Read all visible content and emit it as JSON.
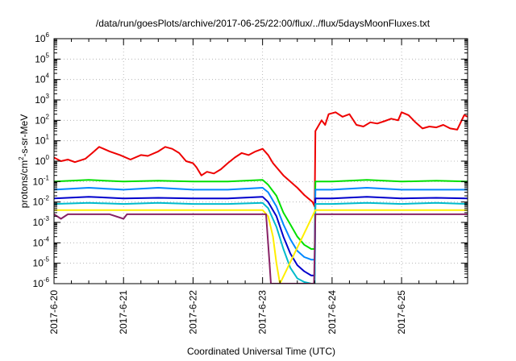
{
  "chart_data": {
    "type": "line",
    "title": "/data/run/goesPlots/archive/2017-06-25/22:00/flux/../flux/5daysMoonFluxes.txt",
    "xlabel": "Coordinated Universal Time (UTC)",
    "ylabel": "protons/cm2-s-sr-MeV",
    "ylabel_parts": [
      "protons/cm",
      "2",
      "-s-sr-MeV"
    ],
    "x_unit": "days since 2017-06-20",
    "xlim": [
      0,
      5.95
    ],
    "ylim": [
      1e-06,
      1000000.0
    ],
    "yscale": "log",
    "grid": true,
    "legend": "none",
    "x_ticks": [
      {
        "value": 0,
        "label": "2017-6-20"
      },
      {
        "value": 1,
        "label": "2017-6-21"
      },
      {
        "value": 2,
        "label": "2017-6-22"
      },
      {
        "value": 3,
        "label": "2017-6-23"
      },
      {
        "value": 4,
        "label": "2017-6-24"
      },
      {
        "value": 5,
        "label": "2017-6-25"
      }
    ],
    "y_ticks": [
      {
        "exp": -6,
        "base": "10",
        "sup": "-6"
      },
      {
        "exp": -5,
        "base": "10",
        "sup": "-5"
      },
      {
        "exp": -4,
        "base": "10",
        "sup": "-4"
      },
      {
        "exp": -3,
        "base": "10",
        "sup": "-3"
      },
      {
        "exp": -2,
        "base": "10",
        "sup": "-2"
      },
      {
        "exp": -1,
        "base": "10",
        "sup": "-1"
      },
      {
        "exp": 0,
        "base": "10",
        "sup": "0"
      },
      {
        "exp": 1,
        "base": "10",
        "sup": "1"
      },
      {
        "exp": 2,
        "base": "10",
        "sup": "2"
      },
      {
        "exp": 3,
        "base": "10",
        "sup": "3"
      },
      {
        "exp": 4,
        "base": "10",
        "sup": "4"
      },
      {
        "exp": 5,
        "base": "10",
        "sup": "5"
      },
      {
        "exp": 6,
        "base": "10",
        "sup": "6"
      }
    ],
    "series": [
      {
        "color": "#ee0000",
        "points": [
          [
            0,
            1.5
          ],
          [
            0.1,
            1.0
          ],
          [
            0.2,
            1.2
          ],
          [
            0.3,
            0.9
          ],
          [
            0.45,
            1.3
          ],
          [
            0.55,
            2.5
          ],
          [
            0.65,
            5.0
          ],
          [
            0.8,
            3.0
          ],
          [
            0.95,
            2.0
          ],
          [
            1.1,
            1.2
          ],
          [
            1.25,
            2.0
          ],
          [
            1.35,
            1.8
          ],
          [
            1.5,
            3.0
          ],
          [
            1.6,
            5.0
          ],
          [
            1.7,
            4.0
          ],
          [
            1.8,
            2.5
          ],
          [
            1.9,
            1.0
          ],
          [
            2.0,
            0.8
          ],
          [
            2.05,
            0.5
          ],
          [
            2.12,
            0.2
          ],
          [
            2.2,
            0.3
          ],
          [
            2.3,
            0.25
          ],
          [
            2.4,
            0.4
          ],
          [
            2.5,
            0.8
          ],
          [
            2.6,
            1.5
          ],
          [
            2.7,
            2.5
          ],
          [
            2.8,
            2.0
          ],
          [
            2.9,
            3.0
          ],
          [
            3.0,
            4.0
          ],
          [
            3.08,
            2.0
          ],
          [
            3.15,
            0.8
          ],
          [
            3.3,
            0.2
          ],
          [
            3.5,
            0.05
          ],
          [
            3.6,
            0.022
          ],
          [
            3.72,
            0.01
          ],
          [
            3.75,
            0.006
          ],
          [
            3.76,
            30
          ],
          [
            3.85,
            100
          ],
          [
            3.9,
            60
          ],
          [
            3.95,
            200
          ],
          [
            4.05,
            250
          ],
          [
            4.15,
            150
          ],
          [
            4.25,
            200
          ],
          [
            4.35,
            60
          ],
          [
            4.45,
            50
          ],
          [
            4.55,
            80
          ],
          [
            4.65,
            70
          ],
          [
            4.75,
            90
          ],
          [
            4.85,
            120
          ],
          [
            4.95,
            100
          ],
          [
            5.0,
            250
          ],
          [
            5.1,
            180
          ],
          [
            5.2,
            80
          ],
          [
            5.3,
            40
          ],
          [
            5.4,
            50
          ],
          [
            5.5,
            45
          ],
          [
            5.6,
            60
          ],
          [
            5.7,
            40
          ],
          [
            5.8,
            35
          ],
          [
            5.9,
            180
          ],
          [
            5.95,
            150
          ]
        ]
      },
      {
        "color": "#00e000",
        "points": [
          [
            0,
            0.1
          ],
          [
            0.5,
            0.12
          ],
          [
            1.0,
            0.1
          ],
          [
            1.5,
            0.11
          ],
          [
            2.0,
            0.1
          ],
          [
            2.5,
            0.1
          ],
          [
            3.0,
            0.12
          ],
          [
            3.08,
            0.07
          ],
          [
            3.2,
            0.02
          ],
          [
            3.3,
            0.003
          ],
          [
            3.4,
            0.0008
          ],
          [
            3.5,
            0.0002
          ],
          [
            3.6,
            8e-05
          ],
          [
            3.7,
            5e-05
          ],
          [
            3.75,
            5e-05
          ],
          [
            3.76,
            0.1
          ],
          [
            4.0,
            0.1
          ],
          [
            4.5,
            0.12
          ],
          [
            5.0,
            0.1
          ],
          [
            5.5,
            0.11
          ],
          [
            5.95,
            0.1
          ]
        ]
      },
      {
        "color": "#0088ff",
        "points": [
          [
            0,
            0.04
          ],
          [
            0.5,
            0.05
          ],
          [
            1.0,
            0.04
          ],
          [
            1.5,
            0.05
          ],
          [
            2.0,
            0.04
          ],
          [
            2.5,
            0.04
          ],
          [
            3.0,
            0.05
          ],
          [
            3.08,
            0.03
          ],
          [
            3.2,
            0.006
          ],
          [
            3.3,
            0.0008
          ],
          [
            3.4,
            0.00015
          ],
          [
            3.5,
            4e-05
          ],
          [
            3.6,
            2e-05
          ],
          [
            3.7,
            1.5e-05
          ],
          [
            3.75,
            1.5e-05
          ],
          [
            3.76,
            0.04
          ],
          [
            4.0,
            0.04
          ],
          [
            4.5,
            0.05
          ],
          [
            5.0,
            0.04
          ],
          [
            5.5,
            0.04
          ],
          [
            5.95,
            0.04
          ]
        ]
      },
      {
        "color": "#0000cc",
        "points": [
          [
            0,
            0.015
          ],
          [
            0.5,
            0.018
          ],
          [
            1.0,
            0.015
          ],
          [
            1.5,
            0.016
          ],
          [
            2.0,
            0.015
          ],
          [
            2.5,
            0.015
          ],
          [
            3.0,
            0.018
          ],
          [
            3.08,
            0.01
          ],
          [
            3.2,
            0.002
          ],
          [
            3.3,
            0.0002
          ],
          [
            3.4,
            3e-05
          ],
          [
            3.5,
            8e-06
          ],
          [
            3.6,
            4e-06
          ],
          [
            3.7,
            2.5e-06
          ],
          [
            3.75,
            2.5e-06
          ],
          [
            3.76,
            0.015
          ],
          [
            4.0,
            0.015
          ],
          [
            4.5,
            0.018
          ],
          [
            5.0,
            0.015
          ],
          [
            5.5,
            0.016
          ],
          [
            5.95,
            0.015
          ]
        ]
      },
      {
        "color": "#00bbcc",
        "points": [
          [
            0,
            0.008
          ],
          [
            0.5,
            0.009
          ],
          [
            1.0,
            0.008
          ],
          [
            1.5,
            0.009
          ],
          [
            2.0,
            0.008
          ],
          [
            2.5,
            0.008
          ],
          [
            3.0,
            0.009
          ],
          [
            3.08,
            0.005
          ],
          [
            3.2,
            0.0006
          ],
          [
            3.3,
            5e-05
          ],
          [
            3.4,
            6e-06
          ],
          [
            3.5,
            1.8e-06
          ],
          [
            3.6,
            1.2e-06
          ],
          [
            3.7,
            1e-06
          ],
          [
            3.75,
            1e-06
          ],
          [
            3.76,
            0.008
          ],
          [
            4.0,
            0.008
          ],
          [
            4.5,
            0.009
          ],
          [
            5.0,
            0.008
          ],
          [
            5.5,
            0.009
          ],
          [
            5.95,
            0.008
          ]
        ]
      },
      {
        "color": "#ffee00",
        "points": [
          [
            0,
            0.004
          ],
          [
            0.5,
            0.004
          ],
          [
            1.0,
            0.004
          ],
          [
            1.5,
            0.004
          ],
          [
            2.0,
            0.004
          ],
          [
            2.5,
            0.004
          ],
          [
            3.0,
            0.004
          ],
          [
            3.08,
            0.002
          ],
          [
            3.15,
            0.0002
          ],
          [
            3.2,
            1e-05
          ],
          [
            3.25,
            1e-06
          ],
          [
            3.76,
            0.004
          ],
          [
            4.0,
            0.004
          ],
          [
            4.5,
            0.004
          ],
          [
            5.0,
            0.004
          ],
          [
            5.5,
            0.004
          ],
          [
            5.95,
            0.004
          ]
        ]
      },
      {
        "color": "#882266",
        "points": [
          [
            0,
            0.0025
          ],
          [
            0.1,
            0.0015
          ],
          [
            0.2,
            0.0025
          ],
          [
            0.5,
            0.0025
          ],
          [
            0.8,
            0.0025
          ],
          [
            1.0,
            0.0015
          ],
          [
            1.05,
            0.0025
          ],
          [
            1.5,
            0.0025
          ],
          [
            2.0,
            0.0025
          ],
          [
            2.5,
            0.0025
          ],
          [
            3.0,
            0.0025
          ],
          [
            3.05,
            0.0025
          ],
          [
            3.1,
            1e-05
          ],
          [
            3.12,
            1e-06
          ],
          [
            3.74,
            1e-06
          ],
          [
            3.76,
            0.0025
          ],
          [
            4.0,
            0.0025
          ],
          [
            4.5,
            0.0025
          ],
          [
            5.0,
            0.0025
          ],
          [
            5.5,
            0.0025
          ],
          [
            5.95,
            0.0025
          ]
        ]
      }
    ]
  }
}
